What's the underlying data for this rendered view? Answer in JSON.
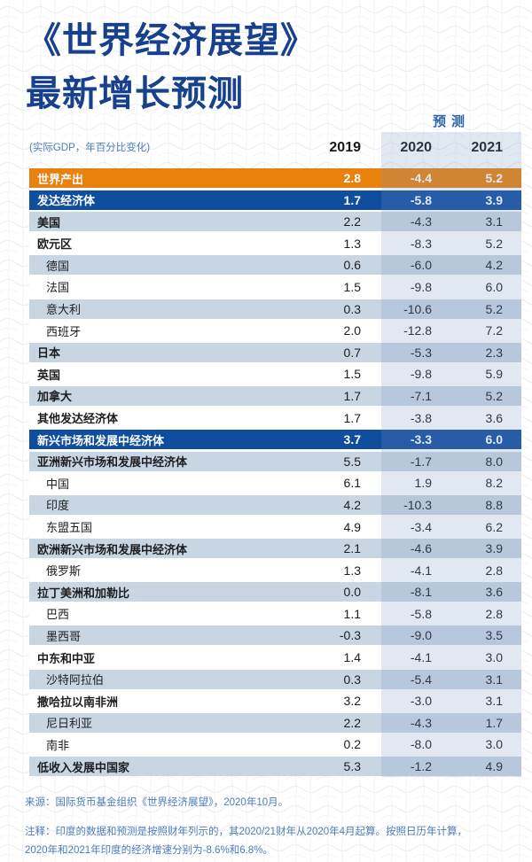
{
  "header": {
    "title_line1": "《世界经济展望》",
    "title_line2": "最新增长预测",
    "subtitle": "(实际GDP，年百分比变化)",
    "forecast_label": "预测"
  },
  "chart_data": {
    "type": "table",
    "title": "《世界经济展望》最新增长预测",
    "subtitle": "(实际GDP，年百分比变化)",
    "columns": [
      "2019",
      "2020",
      "2021"
    ],
    "forecast_columns": [
      "2020",
      "2021"
    ],
    "rows": [
      {
        "label": "世界产出",
        "style": "orange",
        "bold": true,
        "indent": false,
        "values": [
          "2.8",
          "-4.4",
          "5.2"
        ]
      },
      {
        "label": "发达经济体",
        "style": "navy",
        "bold": true,
        "indent": false,
        "values": [
          "1.7",
          "-5.8",
          "3.9"
        ]
      },
      {
        "label": "美国",
        "style": "light",
        "bold": true,
        "indent": false,
        "values": [
          "2.2",
          "-4.3",
          "3.1"
        ]
      },
      {
        "label": "欧元区",
        "style": "white",
        "bold": true,
        "indent": false,
        "values": [
          "1.3",
          "-8.3",
          "5.2"
        ]
      },
      {
        "label": "德国",
        "style": "light",
        "bold": false,
        "indent": true,
        "values": [
          "0.6",
          "-6.0",
          "4.2"
        ]
      },
      {
        "label": "法国",
        "style": "white",
        "bold": false,
        "indent": true,
        "values": [
          "1.5",
          "-9.8",
          "6.0"
        ]
      },
      {
        "label": "意大利",
        "style": "light",
        "bold": false,
        "indent": true,
        "values": [
          "0.3",
          "-10.6",
          "5.2"
        ]
      },
      {
        "label": "西班牙",
        "style": "white",
        "bold": false,
        "indent": true,
        "values": [
          "2.0",
          "-12.8",
          "7.2"
        ]
      },
      {
        "label": "日本",
        "style": "light",
        "bold": true,
        "indent": false,
        "values": [
          "0.7",
          "-5.3",
          "2.3"
        ]
      },
      {
        "label": "英国",
        "style": "white",
        "bold": true,
        "indent": false,
        "values": [
          "1.5",
          "-9.8",
          "5.9"
        ]
      },
      {
        "label": "加拿大",
        "style": "light",
        "bold": true,
        "indent": false,
        "values": [
          "1.7",
          "-7.1",
          "5.2"
        ]
      },
      {
        "label": "其他发达经济体",
        "style": "white",
        "bold": true,
        "indent": false,
        "values": [
          "1.7",
          "-3.8",
          "3.6"
        ]
      },
      {
        "label": "新兴市场和发展中经济体",
        "style": "navy",
        "bold": true,
        "indent": false,
        "values": [
          "3.7",
          "-3.3",
          "6.0"
        ]
      },
      {
        "label": "亚洲新兴市场和发展中经济体",
        "style": "light",
        "bold": true,
        "indent": false,
        "values": [
          "5.5",
          "-1.7",
          "8.0"
        ]
      },
      {
        "label": "中国",
        "style": "white",
        "bold": false,
        "indent": true,
        "values": [
          "6.1",
          "1.9",
          "8.2"
        ]
      },
      {
        "label": "印度",
        "style": "light",
        "bold": false,
        "indent": true,
        "values": [
          "4.2",
          "-10.3",
          "8.8"
        ]
      },
      {
        "label": "东盟五国",
        "style": "white",
        "bold": false,
        "indent": true,
        "values": [
          "4.9",
          "-3.4",
          "6.2"
        ]
      },
      {
        "label": "欧洲新兴市场和发展中经济体",
        "style": "light",
        "bold": true,
        "indent": false,
        "values": [
          "2.1",
          "-4.6",
          "3.9"
        ]
      },
      {
        "label": "俄罗斯",
        "style": "white",
        "bold": false,
        "indent": true,
        "values": [
          "1.3",
          "-4.1",
          "2.8"
        ]
      },
      {
        "label": "拉丁美洲和加勒比",
        "style": "light",
        "bold": true,
        "indent": false,
        "values": [
          "0.0",
          "-8.1",
          "3.6"
        ]
      },
      {
        "label": "巴西",
        "style": "white",
        "bold": false,
        "indent": true,
        "values": [
          "1.1",
          "-5.8",
          "2.8"
        ]
      },
      {
        "label": "墨西哥",
        "style": "light",
        "bold": false,
        "indent": true,
        "values": [
          "-0.3",
          "-9.0",
          "3.5"
        ]
      },
      {
        "label": "中东和中亚",
        "style": "white",
        "bold": true,
        "indent": false,
        "values": [
          "1.4",
          "-4.1",
          "3.0"
        ]
      },
      {
        "label": "沙特阿拉伯",
        "style": "light",
        "bold": false,
        "indent": true,
        "values": [
          "0.3",
          "-5.4",
          "3.1"
        ]
      },
      {
        "label": "撒哈拉以南非洲",
        "style": "white",
        "bold": true,
        "indent": false,
        "values": [
          "3.2",
          "-3.0",
          "3.1"
        ]
      },
      {
        "label": "尼日利亚",
        "style": "light",
        "bold": false,
        "indent": true,
        "values": [
          "2.2",
          "-4.3",
          "1.7"
        ]
      },
      {
        "label": "南非",
        "style": "white",
        "bold": false,
        "indent": true,
        "values": [
          "0.2",
          "-8.0",
          "3.0"
        ]
      },
      {
        "label": "低收入发展中国家",
        "style": "light",
        "bold": true,
        "indent": false,
        "values": [
          "5.3",
          "-1.2",
          "4.9"
        ]
      }
    ]
  },
  "footer": {
    "source": "来源：国际货币基金组织《世界经济展望》，2020年10月。",
    "note": "注释：印度的数据和预测是按照财年列示的，其2020/21财年从2020年4月起算。按照日历年计算，\n2020年和2021年印度的经济增速分别为-8.6%和6.8%。"
  },
  "colors": {
    "title_blue": "#17418c",
    "world_output_orange": "#e8810e",
    "group_header_navy": "#0f4d9e",
    "alt_row_light_blue": "#c8d6e4",
    "accent_text_blue": "#4e7cba",
    "forecast_label_blue": "#2e62aa",
    "forecast_band_overlay": "rgba(122,152,196,0.22)"
  }
}
